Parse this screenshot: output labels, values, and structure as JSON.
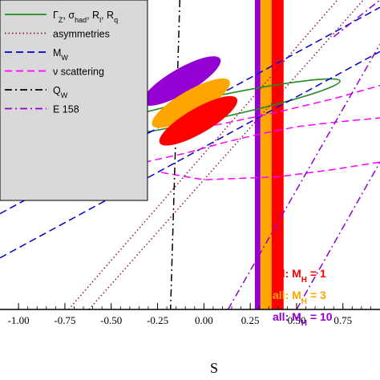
{
  "chart_data": {
    "type": "line",
    "title": "",
    "xlabel": "S",
    "ylabel": "",
    "xlim": [
      -1.1,
      0.95
    ],
    "ylim": [
      -1.0,
      1.1
    ],
    "x_ticks": [
      -1.0,
      -0.75,
      -0.5,
      -0.25,
      0.0,
      0.25,
      0.5,
      0.75
    ],
    "x_tick_labels": [
      "-1.00",
      "-0.75",
      "-0.50",
      "-0.25",
      "0.00",
      "0.25",
      "0.50",
      "0.75"
    ],
    "legend": {
      "placement": "top-left",
      "background": "#d9d9d9",
      "entries": [
        {
          "label": "ΓZ, σhad, Rl, Rq",
          "color": "#228b22",
          "style": "solid"
        },
        {
          "label": "asymmetries",
          "color": "#8b1a3a",
          "style": "dotted"
        },
        {
          "label": "MW",
          "color": "#0000cd",
          "style": "dashed"
        },
        {
          "label": "ν scattering",
          "color": "#ff00ff",
          "style": "dashed"
        },
        {
          "label": "QW",
          "color": "#000000",
          "style": "dashdot"
        },
        {
          "label": "E 158",
          "color": "#9400d3",
          "style": "dashdot"
        }
      ]
    },
    "bands": [
      {
        "color": "#9400d3",
        "x_range": [
          0.275,
          0.305
        ]
      },
      {
        "color": "#ffa500",
        "x_range": [
          0.305,
          0.365
        ]
      },
      {
        "color": "#ff0000",
        "x_range": [
          0.365,
          0.43
        ]
      }
    ],
    "band_labels": [
      {
        "text": "all: M",
        "sub": "H",
        "suffix": " =  1",
        "color": "#ff0000"
      },
      {
        "text": "all: M",
        "sub": "H",
        "suffix": " =  3",
        "color": "#ffa500"
      },
      {
        "text": "all: M",
        "sub": "H",
        "suffix": " = 10",
        "color": "#9400d3"
      }
    ],
    "filled_ellipses": [
      {
        "name": "purple",
        "color": "#9400d3",
        "cx": -0.12,
        "cy": 0.55,
        "rx": 0.24,
        "ry": 0.085,
        "angle_deg": 30
      },
      {
        "name": "orange",
        "color": "#ffa500",
        "cx": -0.07,
        "cy": 0.4,
        "rx": 0.24,
        "ry": 0.085,
        "angle_deg": 30
      },
      {
        "name": "red",
        "color": "#ff0000",
        "cx": -0.03,
        "cy": 0.28,
        "rx": 0.24,
        "ry": 0.085,
        "angle_deg": 30
      }
    ],
    "series": [
      {
        "name": "ΓZ, σhad, Rl, Rq",
        "kind": "ellipse",
        "color": "#228b22",
        "style": "solid",
        "cx": 0.02,
        "cy": 0.36,
        "rx": 0.73,
        "ry": 0.075,
        "angle_deg": 12
      },
      {
        "name": "asymmetries",
        "color": "#8b1a3a",
        "style": "dotted",
        "x": [
          -0.73,
          0.72
        ],
        "y": [
          -1.0,
          1.1
        ]
      },
      {
        "name": "asymmetries",
        "color": "#8b1a3a",
        "style": "dotted",
        "x": [
          -0.62,
          0.86
        ],
        "y": [
          -1.0,
          1.1
        ]
      },
      {
        "name": "MW",
        "color": "#0000cd",
        "style": "dashed",
        "x": [
          -1.1,
          0.95
        ],
        "y": [
          -0.35,
          1.05
        ]
      },
      {
        "name": "MW",
        "color": "#0000cd",
        "style": "dashed",
        "x": [
          -1.1,
          0.95
        ],
        "y": [
          -0.65,
          0.75
        ]
      },
      {
        "name": "ν scattering",
        "color": "#ff00ff",
        "style": "dashed",
        "x": [
          -0.18,
          0.1,
          0.4,
          0.7,
          0.95
        ],
        "y": [
          0.2,
          0.26,
          0.34,
          0.43,
          0.52
        ]
      },
      {
        "name": "ν scattering",
        "color": "#ff00ff",
        "style": "dashed",
        "x": [
          -0.5,
          -0.1,
          0.1,
          0.3,
          0.5,
          0.7,
          0.95
        ],
        "y": [
          -0.05,
          0.06,
          0.13,
          0.19,
          0.24,
          0.27,
          0.3
        ]
      },
      {
        "name": "ν scattering",
        "color": "#ff00ff",
        "style": "dashed",
        "x": [
          -0.23,
          0.0,
          0.4,
          0.7,
          0.95
        ],
        "y": [
          -0.07,
          -0.12,
          -0.1,
          -0.05,
          0.0
        ]
      },
      {
        "name": "QW",
        "color": "#000000",
        "style": "dashdot",
        "x": [
          -0.13,
          -0.18
        ],
        "y": [
          1.1,
          -1.0
        ]
      },
      {
        "name": "E 158",
        "color": "#9400d3",
        "style": "dashdot",
        "x": [
          0.13,
          0.95
        ],
        "y": [
          -1.0,
          0.8
        ]
      },
      {
        "name": "E 158",
        "color": "#9400d3",
        "style": "dashdot",
        "x": [
          0.5,
          0.95
        ],
        "y": [
          -1.0,
          0.0
        ]
      },
      {
        "name": "E 158",
        "color": "#9400d3",
        "style": "dashdot",
        "x": [
          0.7,
          0.95
        ],
        "y": [
          0.85,
          1.1
        ]
      }
    ]
  }
}
